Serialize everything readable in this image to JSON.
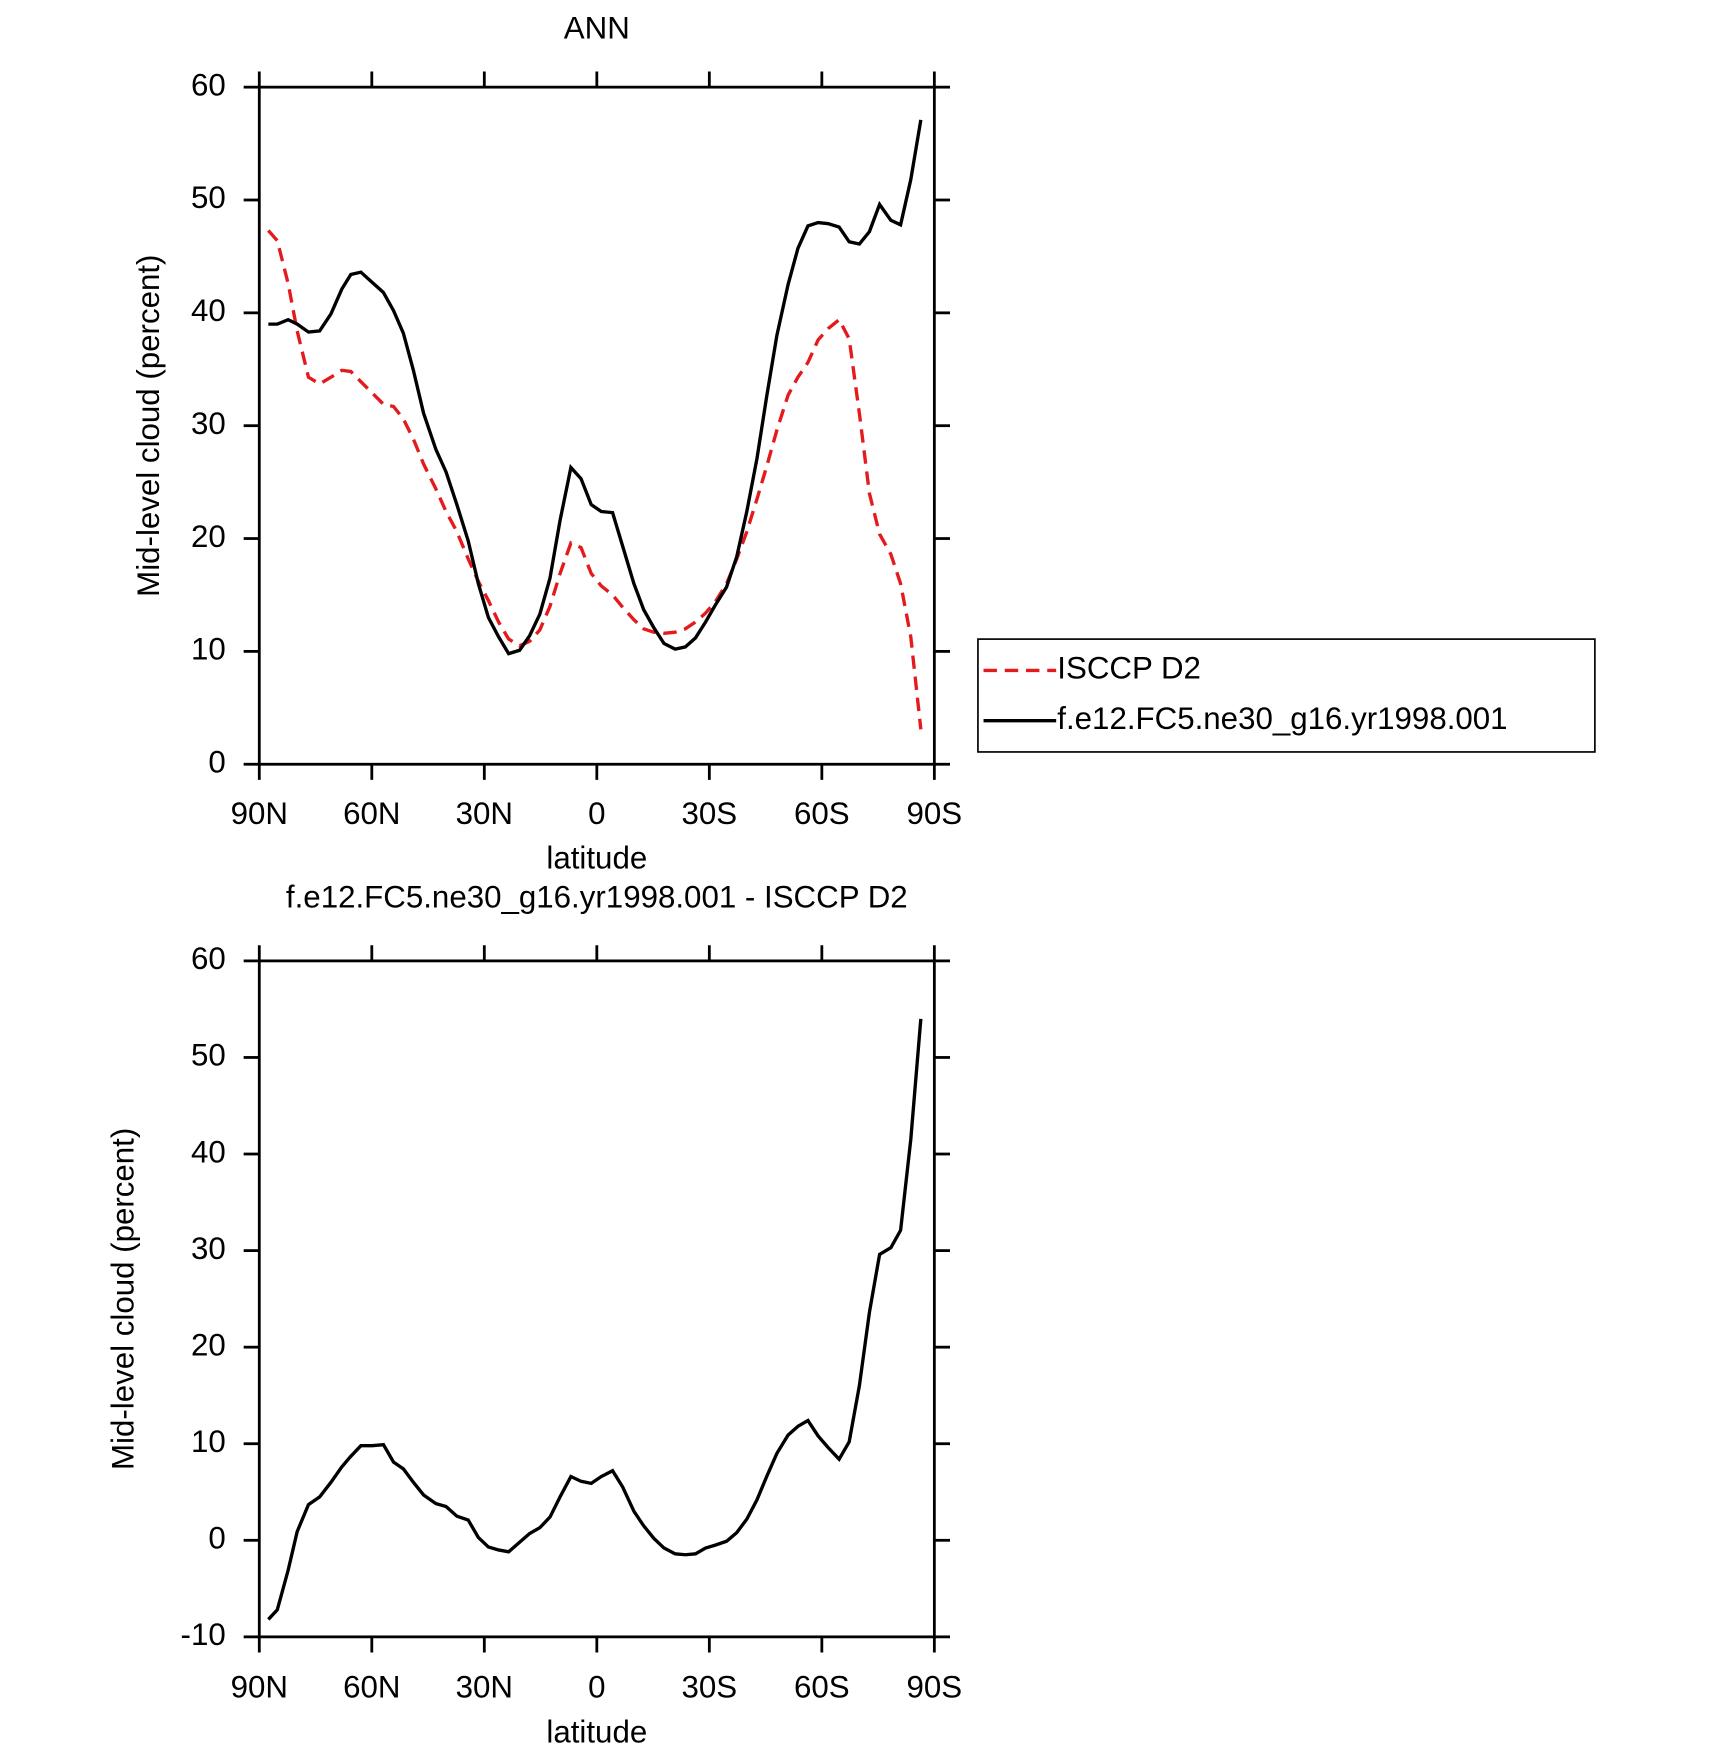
{
  "chart_data": [
    {
      "type": "line",
      "title": "ANN",
      "x_label": "latitude",
      "y_label": "Mid-level cloud (percent)",
      "x": [
        87.6,
        85.2,
        82.3,
        79.9,
        76.9,
        73.9,
        70.9,
        68,
        65.6,
        62.9,
        59.9,
        56.9,
        54.2,
        51.6,
        48.9,
        46.2,
        42.9,
        40.2,
        37.3,
        34.3,
        31.6,
        28.9,
        26.2,
        23.5,
        20.6,
        17.9,
        15.2,
        12.5,
        9.8,
        6.9,
        4.2,
        1.5,
        -1.2,
        -4.2,
        -6.9,
        -9.9,
        -12.5,
        -15.2,
        -17.9,
        -20.9,
        -23.6,
        -26.3,
        -29,
        -31.6,
        -34.6,
        -37.3,
        -40,
        -42.7,
        -45.3,
        -48,
        -51,
        -53.6,
        -56.3,
        -59,
        -61.7,
        -64.6,
        -67.3,
        -70,
        -72.7,
        -75.4,
        -78.4,
        -81,
        -83.7,
        -86.4
      ],
      "xlim": [
        90,
        -90
      ],
      "xticks": [
        {
          "value": 90,
          "label": "90N"
        },
        {
          "value": 60,
          "label": "60N"
        },
        {
          "value": 30,
          "label": "30N"
        },
        0,
        {
          "value": -30,
          "label": "30S"
        },
        {
          "value": -60,
          "label": "60S"
        },
        {
          "value": -90,
          "label": "90S"
        }
      ],
      "ylim": [
        0,
        60
      ],
      "yticks": [
        0,
        10,
        20,
        30,
        40,
        50,
        60
      ],
      "legend": "right",
      "series": [
        {
          "name": "ISCCP D2",
          "color": "#e41a1c",
          "dashed": true,
          "values": [
            47.3,
            46.4,
            42.6,
            38.4,
            34.3,
            33.7,
            34.3,
            34.9,
            34.8,
            33.9,
            32.9,
            31.9,
            31.7,
            30.6,
            28.8,
            26.6,
            24.4,
            22.4,
            20.6,
            18.2,
            16.2,
            14.5,
            12.6,
            11.1,
            10.5,
            10.9,
            11.9,
            14,
            16.9,
            19.6,
            19.2,
            16.9,
            15.8,
            15,
            13.9,
            12.8,
            12,
            11.7,
            11.6,
            11.7,
            12,
            12.6,
            13.4,
            14.4,
            16,
            18.2,
            20.6,
            23.5,
            26.4,
            29.6,
            32.7,
            34.3,
            35.6,
            37.6,
            38.6,
            39.4,
            37.7,
            31.1,
            24,
            20.4,
            18.6,
            16,
            11.3,
            3.1
          ]
        },
        {
          "name": "f.e12.FC5.ne30_g16.yr1998.001",
          "color": "#000000",
          "dashed": false,
          "values": [
            39,
            39,
            39.4,
            39,
            38.3,
            38.4,
            39.9,
            42.1,
            43.4,
            43.6,
            42.7,
            41.8,
            40.2,
            38.2,
            34.9,
            31.1,
            27.9,
            25.9,
            23,
            19.8,
            16,
            13,
            11.3,
            9.8,
            10.1,
            11.4,
            13.3,
            16.5,
            21.6,
            26.3,
            25.3,
            23,
            22.4,
            22.3,
            19.3,
            16,
            13.7,
            12.1,
            10.7,
            10.2,
            10.4,
            11.2,
            12.6,
            14.1,
            15.7,
            18.4,
            22.4,
            27.1,
            32.6,
            38,
            42.5,
            45.7,
            47.7,
            48,
            47.9,
            47.6,
            46.3,
            46.1,
            47.2,
            49.6,
            48.2,
            47.8,
            51.8,
            57.1
          ]
        }
      ]
    },
    {
      "type": "line",
      "title": "f.e12.FC5.ne30_g16.yr1998.001 - ISCCP D2",
      "x_label": "latitude",
      "y_label": "Mid-level cloud (percent)",
      "x": [
        87.6,
        85.2,
        82.3,
        79.9,
        76.9,
        73.9,
        70.9,
        68,
        65.6,
        62.9,
        59.9,
        56.9,
        54.2,
        51.6,
        48.9,
        46.2,
        42.9,
        40.2,
        37.3,
        34.3,
        31.6,
        28.9,
        26.2,
        23.5,
        20.6,
        17.9,
        15.2,
        12.5,
        9.8,
        6.9,
        4.2,
        1.5,
        -1.2,
        -4.2,
        -6.9,
        -9.9,
        -12.5,
        -15.2,
        -17.9,
        -20.9,
        -23.6,
        -26.3,
        -29,
        -31.6,
        -34.6,
        -37.3,
        -40,
        -42.7,
        -45.3,
        -48,
        -51,
        -53.6,
        -56.3,
        -59,
        -61.7,
        -64.6,
        -67.3,
        -70,
        -72.7,
        -75.4,
        -78.4,
        -81,
        -83.7,
        -86.4
      ],
      "xlim": [
        90,
        -90
      ],
      "xticks": [
        {
          "value": 90,
          "label": "90N"
        },
        {
          "value": 60,
          "label": "60N"
        },
        {
          "value": 30,
          "label": "30N"
        },
        0,
        {
          "value": -30,
          "label": "30S"
        },
        {
          "value": -60,
          "label": "60S"
        },
        {
          "value": -90,
          "label": "90S"
        }
      ],
      "ylim": [
        -10,
        60
      ],
      "yticks": [
        -10,
        0,
        10,
        20,
        30,
        40,
        50,
        60
      ],
      "color": "#000000",
      "values": [
        -8.2,
        -7.2,
        -3.1,
        0.9,
        3.7,
        4.5,
        6,
        7.6,
        8.7,
        9.8,
        9.8,
        9.9,
        8.1,
        7.4,
        6,
        4.7,
        3.8,
        3.5,
        2.5,
        2.1,
        0.3,
        -0.7,
        -1,
        -1.2,
        -0.2,
        0.7,
        1.3,
        2.4,
        4.5,
        6.6,
        6.1,
        5.9,
        6.6,
        7.2,
        5.5,
        3,
        1.5,
        0.2,
        -0.8,
        -1.4,
        -1.5,
        -1.4,
        -0.8,
        -0.5,
        -0.1,
        0.8,
        2.2,
        4.2,
        6.6,
        9,
        10.9,
        11.8,
        12.4,
        10.8,
        9.6,
        8.4,
        10.2,
        16,
        23.6,
        29.6,
        30.3,
        32.1,
        41.5,
        54
      ]
    }
  ]
}
